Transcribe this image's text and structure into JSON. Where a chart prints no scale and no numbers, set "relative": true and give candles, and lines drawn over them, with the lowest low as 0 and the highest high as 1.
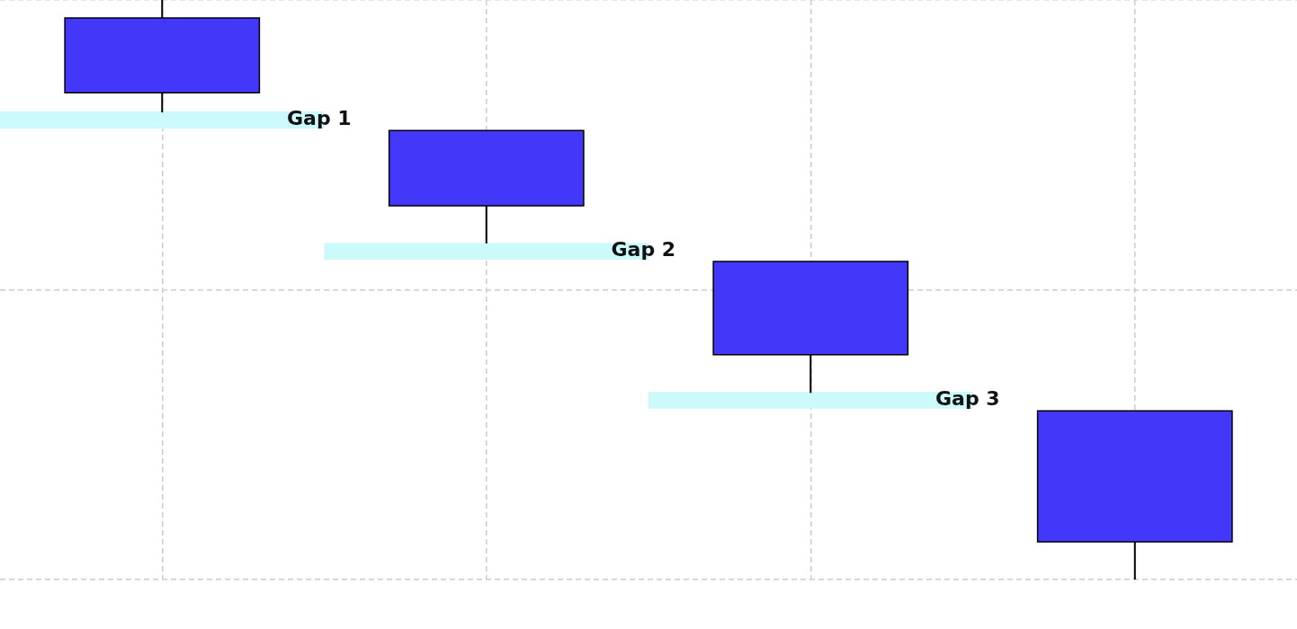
{
  "chart_data": {
    "type": "candlestick",
    "relative": true,
    "categories": [
      null,
      null,
      null,
      null
    ],
    "ohlc": [
      [
        0.969,
        1,
        0.806,
        0.84
      ],
      [
        0.775,
        0.775,
        0.58,
        0.645
      ],
      [
        0.549,
        0.549,
        0.322,
        0.388
      ],
      [
        0.291,
        0.291,
        0,
        0.065
      ]
    ],
    "color": "#4338fa",
    "bands": [
      {
        "axis": "y",
        "from": 0.778,
        "to": 0.808,
        "label": "Gap 1",
        "color": "#ccfafa"
      },
      {
        "axis": "y",
        "from": 0.552,
        "to": 0.581,
        "label": "Gap 2",
        "color": "#ccfafa"
      },
      {
        "axis": "y",
        "from": 0.295,
        "to": 0.324,
        "label": "Gap 3",
        "color": "#ccfafa"
      }
    ],
    "grid": true,
    "tick_labels": false
  }
}
